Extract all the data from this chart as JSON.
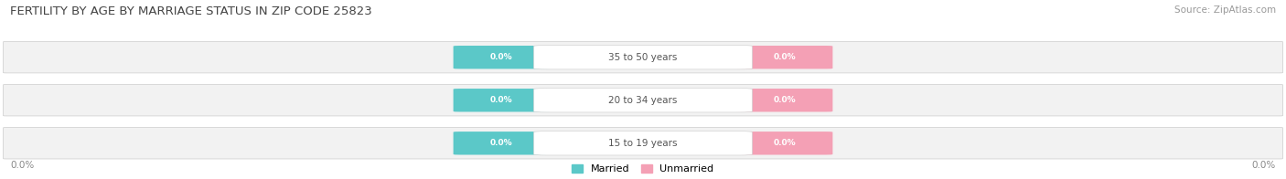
{
  "title": "FERTILITY BY AGE BY MARRIAGE STATUS IN ZIP CODE 25823",
  "source": "Source: ZipAtlas.com",
  "categories": [
    "15 to 19 years",
    "20 to 34 years",
    "35 to 50 years"
  ],
  "married_values": [
    0.0,
    0.0,
    0.0
  ],
  "unmarried_values": [
    0.0,
    0.0,
    0.0
  ],
  "married_color": "#5BC8C8",
  "unmarried_color": "#F4A0B5",
  "bar_bg_color": "#F2F2F2",
  "bar_border_color": "#CCCCCC",
  "title_fontsize": 9.5,
  "source_fontsize": 7.5,
  "axis_label_left": "0.0%",
  "axis_label_right": "0.0%",
  "background_color": "#FFFFFF",
  "label_color": "#666666",
  "center_label_color": "#555555"
}
